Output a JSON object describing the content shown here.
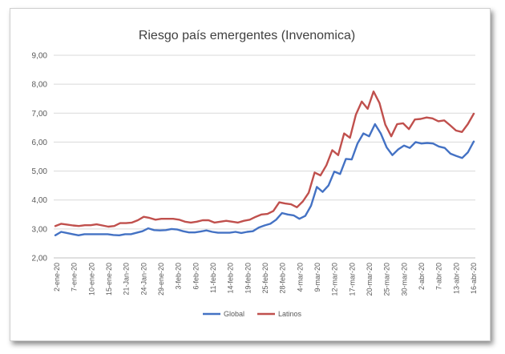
{
  "chart_data": {
    "type": "line",
    "title": "Riesgo país emergentes (Invenomica)",
    "xlabel": "",
    "ylabel": "",
    "ylim": [
      2,
      9
    ],
    "yticks": [
      "2,00",
      "3,00",
      "4,00",
      "5,00",
      "6,00",
      "7,00",
      "8,00",
      "9,00"
    ],
    "grid": "horizontal",
    "legend": "bottom-center",
    "x_tick_labels": [
      "2-ene-20",
      "7-ene-20",
      "10-ene-20",
      "15-ene-20",
      "21-Jan-20",
      "24-Jan-20",
      "29-ene-20",
      "3-feb-20",
      "6-feb-20",
      "11-feb-20",
      "14-feb-20",
      "19-feb-20",
      "25-feb-20",
      "28-feb-20",
      "4-mar-20",
      "9-mar-20",
      "12-mar-20",
      "17-mar-20",
      "20-mar-20",
      "25-mar-20",
      "30-mar-20",
      "2-abr-20",
      "7-abr-20",
      "13-abr-20",
      "16-abr-20"
    ],
    "series": [
      {
        "name": "Global",
        "color": "#4472c4",
        "values": [
          2.78,
          2.9,
          2.86,
          2.82,
          2.78,
          2.82,
          2.82,
          2.82,
          2.82,
          2.82,
          2.79,
          2.78,
          2.82,
          2.82,
          2.87,
          2.92,
          3.02,
          2.96,
          2.95,
          2.96,
          3.0,
          2.98,
          2.92,
          2.88,
          2.88,
          2.91,
          2.95,
          2.9,
          2.87,
          2.87,
          2.87,
          2.9,
          2.86,
          2.9,
          2.92,
          3.05,
          3.12,
          3.18,
          3.32,
          3.55,
          3.5,
          3.47,
          3.35,
          3.45,
          3.8,
          4.45,
          4.28,
          4.5,
          4.98,
          4.9,
          5.42,
          5.4,
          5.95,
          6.3,
          6.2,
          6.62,
          6.3,
          5.82,
          5.55,
          5.75,
          5.88,
          5.8,
          6.0,
          5.95,
          5.97,
          5.95,
          5.85,
          5.8,
          5.6,
          5.52,
          5.45,
          5.65,
          6.02
        ]
      },
      {
        "name": "Latinos",
        "color": "#c0504d",
        "values": [
          3.1,
          3.18,
          3.15,
          3.12,
          3.1,
          3.13,
          3.13,
          3.16,
          3.12,
          3.08,
          3.1,
          3.2,
          3.2,
          3.22,
          3.3,
          3.42,
          3.38,
          3.32,
          3.35,
          3.35,
          3.35,
          3.32,
          3.25,
          3.22,
          3.25,
          3.3,
          3.3,
          3.22,
          3.25,
          3.28,
          3.25,
          3.22,
          3.28,
          3.32,
          3.42,
          3.5,
          3.52,
          3.62,
          3.92,
          3.88,
          3.85,
          3.75,
          3.95,
          4.25,
          4.95,
          4.85,
          5.2,
          5.72,
          5.55,
          6.3,
          6.15,
          6.95,
          7.4,
          7.15,
          7.75,
          7.35,
          6.6,
          6.2,
          6.62,
          6.65,
          6.45,
          6.78,
          6.8,
          6.85,
          6.82,
          6.72,
          6.75,
          6.58,
          6.4,
          6.35,
          6.62,
          6.98
        ]
      }
    ]
  }
}
